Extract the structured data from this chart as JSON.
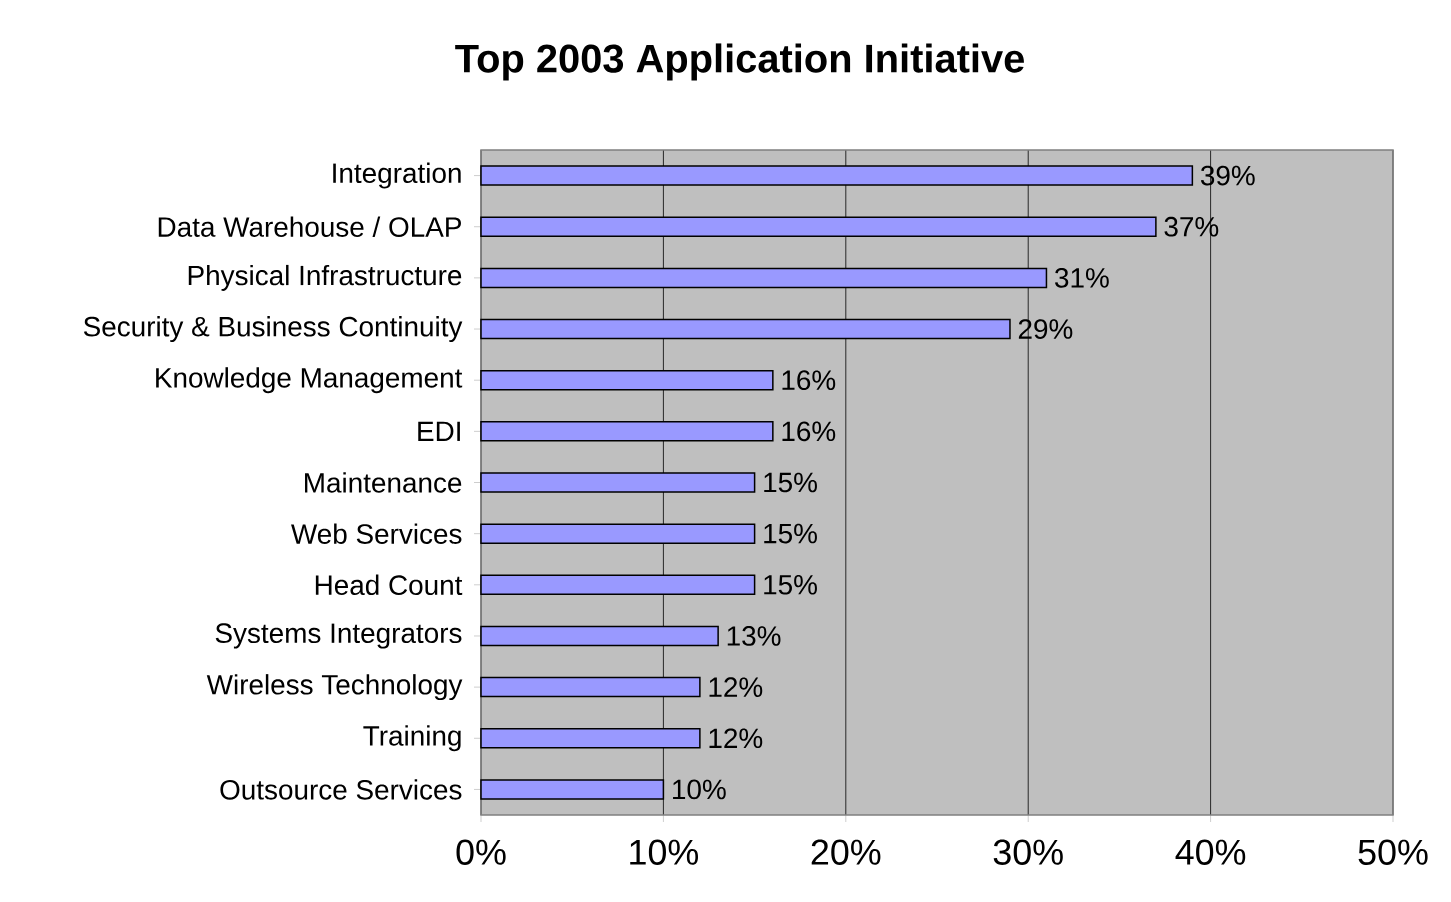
{
  "chart_data": {
    "type": "bar",
    "orientation": "horizontal",
    "title": "Top 2003 Application Initiative",
    "categories": [
      "Integration",
      "Data Warehouse / OLAP",
      "Physical Infrastructure",
      "Security & Business Continuity",
      "Knowledge Management",
      "EDI",
      "Maintenance",
      "Web Services",
      "Head Count",
      "Systems Integrators",
      "Wireless Technology",
      "Training",
      "Outsource Services"
    ],
    "values": [
      39,
      37,
      31,
      29,
      16,
      16,
      15,
      15,
      15,
      13,
      12,
      12,
      10
    ],
    "value_labels": [
      "39%",
      "37%",
      "31%",
      "29%",
      "16%",
      "16%",
      "15%",
      "15%",
      "15%",
      "13%",
      "12%",
      "12%",
      "10%"
    ],
    "color": "#9999ff",
    "xlim": [
      0,
      50
    ],
    "xticks": [
      {
        "value": 0,
        "label": "0%"
      },
      {
        "value": 10,
        "label": "10%"
      },
      {
        "value": 20,
        "label": "20%"
      },
      {
        "value": 30,
        "label": "30%"
      },
      {
        "value": 40,
        "label": "40%"
      },
      {
        "value": 50,
        "label": "50%"
      }
    ],
    "grid": "x"
  }
}
